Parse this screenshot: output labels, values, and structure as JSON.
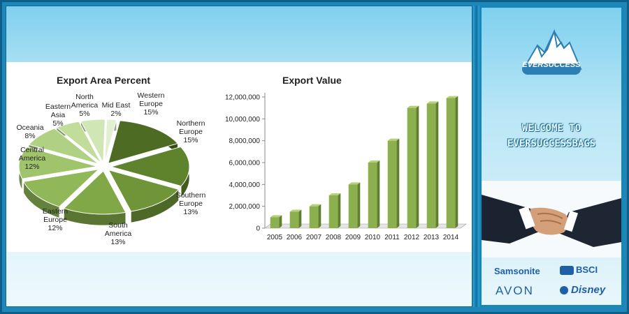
{
  "pie_chart": {
    "title": "Export Area Percent",
    "labels": [
      {
        "name": "Western Europe",
        "text": "Western\nEurope\n15%"
      },
      {
        "name": "Northern Europe",
        "text": "Northern\nEurope\n15%"
      },
      {
        "name": "Southern Europe",
        "text": "Southern\nEurope\n13%"
      },
      {
        "name": "South America",
        "text": "South\nAmerica\n13%"
      },
      {
        "name": "Eastern Europe",
        "text": "Eastern\nEurope\n12%"
      },
      {
        "name": "Central America",
        "text": "Central\nAmerica\n12%"
      },
      {
        "name": "Oceania",
        "text": "Oceania\n8%"
      },
      {
        "name": "Eastern Asia",
        "text": "Eastern\nAsia\n5%"
      },
      {
        "name": "North America",
        "text": "North\nAmerica\n5%"
      },
      {
        "name": "Mid East",
        "text": "Mid East\n2%"
      }
    ]
  },
  "bar_chart": {
    "title": "Export Value"
  },
  "chart_data": [
    {
      "type": "pie",
      "title": "Export Area Percent",
      "categories": [
        "Western Europe",
        "Northern Europe",
        "Southern Europe",
        "South America",
        "Eastern Europe",
        "Central America",
        "Oceania",
        "Eastern Asia",
        "North America",
        "Mid East"
      ],
      "values": [
        15,
        15,
        13,
        13,
        12,
        12,
        8,
        5,
        5,
        2
      ],
      "colors": [
        "#4e6b24",
        "#5f822d",
        "#6f9538",
        "#80a847",
        "#90b858",
        "#9fc46b",
        "#b0d083",
        "#c1dc9b",
        "#d1e6b5",
        "#e2f0cf"
      ]
    },
    {
      "type": "bar",
      "title": "Export Value",
      "categories": [
        "2005",
        "2006",
        "2007",
        "2008",
        "2009",
        "2010",
        "2011",
        "2012",
        "2013",
        "2014"
      ],
      "values": [
        1000000,
        1500000,
        2000000,
        3000000,
        4000000,
        6000000,
        8000000,
        11000000,
        11400000,
        11900000
      ],
      "ylim": [
        0,
        12000000
      ],
      "yticks": [
        0,
        2000000,
        4000000,
        6000000,
        8000000,
        10000000,
        12000000
      ],
      "ytick_labels": [
        "0",
        "2,000,000",
        "4,000,000",
        "6,000,000",
        "8,000,000",
        "10,000,000",
        "12,000,000"
      ],
      "color": "#8db04e",
      "grid": false
    }
  ],
  "sidebar": {
    "logo_text": "EVERSUCCESS",
    "welcome_line1": "WELCOME TO",
    "welcome_line2": "EVERSUCCESSBAGS",
    "brands": [
      "Samsonite",
      "BSCI",
      "AVON",
      "Disney"
    ]
  }
}
